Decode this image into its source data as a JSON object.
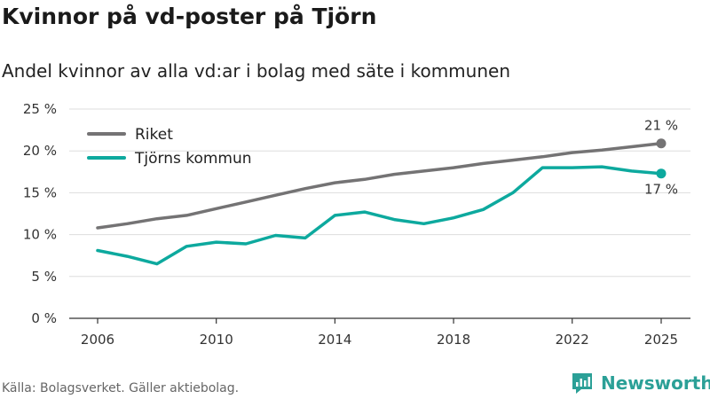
{
  "header": {
    "title": "Kvinnor på vd-poster på Tjörn",
    "subtitle": "Andel kvinnor av alla vd:ar i bolag med säte i kommunen"
  },
  "footer": {
    "source": "Källa: Bolagsverket. Gäller aktiebolag.",
    "brand": "Newsworthy"
  },
  "colors": {
    "riket": "#747374",
    "tjorn": "#0da99e",
    "brand": "#2ba097"
  },
  "chart_data": {
    "type": "line",
    "title": "Kvinnor på vd-poster på Tjörn",
    "subtitle": "Andel kvinnor av alla vd:ar i bolag med säte i kommunen",
    "xlabel": "",
    "ylabel": "",
    "x": [
      2006,
      2007,
      2008,
      2009,
      2010,
      2011,
      2012,
      2013,
      2014,
      2015,
      2016,
      2017,
      2018,
      2019,
      2020,
      2021,
      2022,
      2023,
      2024,
      2025
    ],
    "x_ticks": [
      "2006",
      "2010",
      "2014",
      "2018",
      "2022",
      "2025"
    ],
    "ylim": [
      0,
      25
    ],
    "y_ticks": [
      "0 %",
      "5 %",
      "10 %",
      "15 %",
      "20 %",
      "25 %"
    ],
    "grid": true,
    "legend_position": "top-left",
    "series": [
      {
        "name": "Riket",
        "color": "#747374",
        "values": [
          10.8,
          11.3,
          11.9,
          12.3,
          13.1,
          13.9,
          14.7,
          15.5,
          16.2,
          16.6,
          17.2,
          17.6,
          18.0,
          18.5,
          18.9,
          19.3,
          19.8,
          20.1,
          20.5,
          20.9
        ],
        "end_label": "21 %"
      },
      {
        "name": "Tjörns kommun",
        "color": "#0da99e",
        "values": [
          8.1,
          7.4,
          6.5,
          8.6,
          9.1,
          8.9,
          9.9,
          9.6,
          12.3,
          12.7,
          11.8,
          11.3,
          12.0,
          13.0,
          15.0,
          18.0,
          18.0,
          18.1,
          17.6,
          17.3
        ],
        "end_label": "17 %"
      }
    ]
  }
}
